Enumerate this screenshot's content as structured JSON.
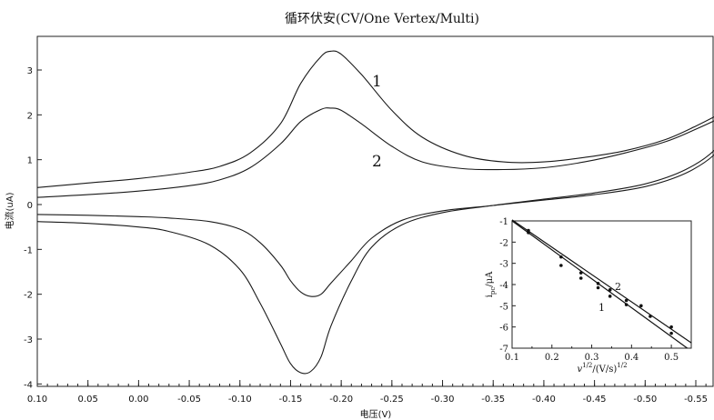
{
  "chart_data": [
    {
      "type": "line",
      "title": "循环伏安(CV/One Vertex/Multi)",
      "xlabel": "电压(V)",
      "ylabel": "电流(uA)",
      "xlim": [
        0.1,
        -0.59
      ],
      "ylim": [
        -4.2,
        3.9
      ],
      "x_ticks": [
        0.1,
        0.05,
        0.0,
        -0.05,
        -0.1,
        -0.15,
        -0.2,
        -0.25,
        -0.3,
        -0.35,
        -0.4,
        -0.45,
        -0.5,
        -0.55
      ],
      "x_tick_labels": [
        "0.10",
        "0.05",
        "0.00",
        "-0.05",
        "-0.10",
        "-0.15",
        "-0.20",
        "-0.25",
        "-0.30",
        "-0.35",
        "-0.40",
        "-0.45",
        "-0.50",
        "-0.55"
      ],
      "y_ticks": [
        -4,
        -3,
        -2,
        -1,
        0,
        1,
        2,
        3
      ],
      "y_tick_labels": [
        "-4",
        "-3",
        "-2",
        "-1",
        "0",
        "1",
        "2",
        "3"
      ],
      "grid": false,
      "series": [
        {
          "name": "1",
          "branches": [
            {
              "x": [
                0.1,
                0.05,
                0.0,
                -0.05,
                -0.08,
                -0.11,
                -0.14,
                -0.16,
                -0.18,
                -0.19,
                -0.2,
                -0.22,
                -0.25,
                -0.28,
                -0.32,
                -0.36,
                -0.4,
                -0.44,
                -0.48,
                -0.52,
                -0.55,
                -0.58,
                -0.59
              ],
              "y": [
                0.38,
                0.48,
                0.58,
                0.72,
                0.85,
                1.15,
                1.8,
                2.7,
                3.3,
                3.42,
                3.35,
                2.9,
                2.1,
                1.5,
                1.1,
                0.95,
                0.95,
                1.05,
                1.2,
                1.45,
                1.75,
                2.1,
                2.25
              ]
            },
            {
              "x": [
                -0.59,
                -0.57,
                -0.54,
                -0.5,
                -0.45,
                -0.4,
                -0.35,
                -0.3,
                -0.26,
                -0.23,
                -0.21,
                -0.19,
                -0.18,
                -0.17,
                -0.16,
                -0.15,
                -0.14,
                -0.12,
                -0.1,
                -0.07,
                -0.03,
                0.0,
                0.05,
                0.1
              ],
              "y": [
                1.95,
                1.25,
                0.78,
                0.46,
                0.26,
                0.12,
                -0.02,
                -0.18,
                -0.45,
                -0.95,
                -1.7,
                -2.7,
                -3.4,
                -3.72,
                -3.75,
                -3.55,
                -3.1,
                -2.2,
                -1.45,
                -0.9,
                -0.6,
                -0.5,
                -0.42,
                -0.38
              ]
            }
          ]
        },
        {
          "name": "2",
          "branches": [
            {
              "x": [
                0.1,
                0.05,
                0.0,
                -0.05,
                -0.08,
                -0.11,
                -0.14,
                -0.16,
                -0.18,
                -0.19,
                -0.2,
                -0.22,
                -0.25,
                -0.28,
                -0.32,
                -0.36,
                -0.4,
                -0.44,
                -0.48,
                -0.52,
                -0.55,
                -0.58,
                -0.59
              ],
              "y": [
                0.16,
                0.22,
                0.3,
                0.42,
                0.55,
                0.82,
                1.35,
                1.85,
                2.12,
                2.15,
                2.1,
                1.8,
                1.3,
                0.95,
                0.8,
                0.78,
                0.82,
                0.95,
                1.15,
                1.4,
                1.68,
                2.0,
                2.15
              ]
            },
            {
              "x": [
                -0.59,
                -0.57,
                -0.54,
                -0.5,
                -0.45,
                -0.4,
                -0.35,
                -0.3,
                -0.26,
                -0.23,
                -0.21,
                -0.19,
                -0.18,
                -0.17,
                -0.16,
                -0.15,
                -0.14,
                -0.12,
                -0.1,
                -0.07,
                -0.03,
                0.0,
                0.05,
                0.1
              ],
              "y": [
                1.8,
                1.15,
                0.7,
                0.4,
                0.22,
                0.1,
                -0.02,
                -0.14,
                -0.35,
                -0.75,
                -1.25,
                -1.75,
                -2.0,
                -2.05,
                -1.95,
                -1.7,
                -1.35,
                -0.85,
                -0.55,
                -0.38,
                -0.3,
                -0.27,
                -0.24,
                -0.22
              ]
            }
          ]
        }
      ]
    },
    {
      "type": "scatter",
      "inset": true,
      "ylabel_main": "i",
      "ylabel_sub": "pc",
      "ylabel_unit": "/μA",
      "xlabel_main": "v",
      "xlabel_sup": "1/2",
      "xlabel_unit": "/(V/s)",
      "xlabel_unit_sup": "1/2",
      "xlim": [
        0.1,
        0.55
      ],
      "ylim": [
        -7,
        -1
      ],
      "x_ticks": [
        0.1,
        0.2,
        0.3,
        0.4,
        0.5
      ],
      "x_tick_labels": [
        "0.1",
        "0.2",
        "0.3",
        "0.4",
        "0.5"
      ],
      "y_ticks": [
        -7,
        -6,
        -5,
        -4,
        -3,
        -2,
        -1
      ],
      "y_tick_labels": [
        "-7",
        "-6",
        "-5",
        "-4",
        "-3",
        "-2",
        "-1"
      ],
      "series": [
        {
          "name": "1",
          "x": [
            0.141,
            0.223,
            0.273,
            0.316,
            0.346,
            0.387,
            0.447,
            0.5
          ],
          "y": [
            -1.55,
            -3.1,
            -3.7,
            -4.15,
            -4.55,
            -4.95,
            -5.5,
            -6.3
          ],
          "fit": {
            "x": [
              0.1,
              0.54
            ],
            "y": [
              -1.0,
              -7.0
            ]
          }
        },
        {
          "name": "2",
          "x": [
            0.141,
            0.223,
            0.273,
            0.316,
            0.346,
            0.387,
            0.424,
            0.5
          ],
          "y": [
            -1.45,
            -2.7,
            -3.45,
            -3.95,
            -4.25,
            -4.75,
            -5.0,
            -6.0
          ],
          "fit": {
            "x": [
              0.1,
              0.55
            ],
            "y": [
              -0.95,
              -6.75
            ]
          }
        }
      ]
    }
  ]
}
